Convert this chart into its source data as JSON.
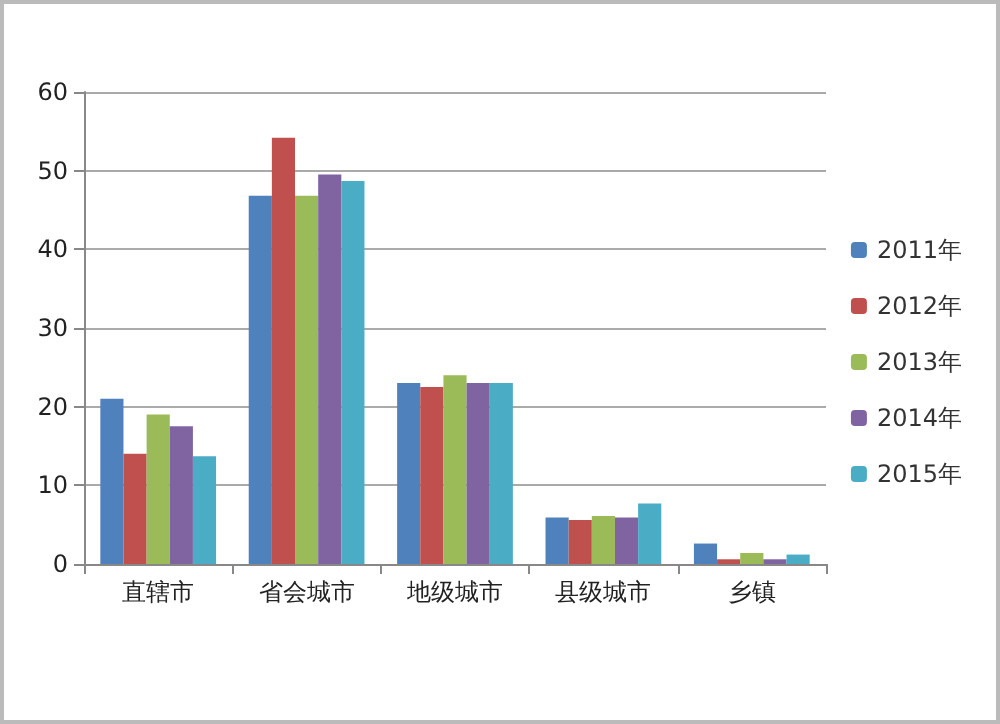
{
  "chart_data": {
    "type": "bar",
    "categories": [
      "直辖市",
      "省会城市",
      "地级城市",
      "县级城市",
      "乡镇"
    ],
    "series": [
      {
        "name": "2011年",
        "color": "#4f81bd",
        "values": [
          21,
          46.8,
          23,
          5.9,
          2.6
        ]
      },
      {
        "name": "2012年",
        "color": "#c0504d",
        "values": [
          14,
          54.2,
          22.5,
          5.6,
          0.6
        ]
      },
      {
        "name": "2013年",
        "color": "#9bbb59",
        "values": [
          19,
          46.8,
          24,
          6.1,
          1.4
        ]
      },
      {
        "name": "2014年",
        "color": "#8064a2",
        "values": [
          17.5,
          49.5,
          23,
          5.9,
          0.6
        ]
      },
      {
        "name": "2015年",
        "color": "#4bacc6",
        "values": [
          13.7,
          48.7,
          23,
          7.7,
          1.2
        ]
      }
    ],
    "ylim": [
      0,
      60
    ],
    "yticks": [
      0,
      10,
      20,
      30,
      40,
      50,
      60
    ],
    "grid": "y",
    "legend": "right"
  }
}
